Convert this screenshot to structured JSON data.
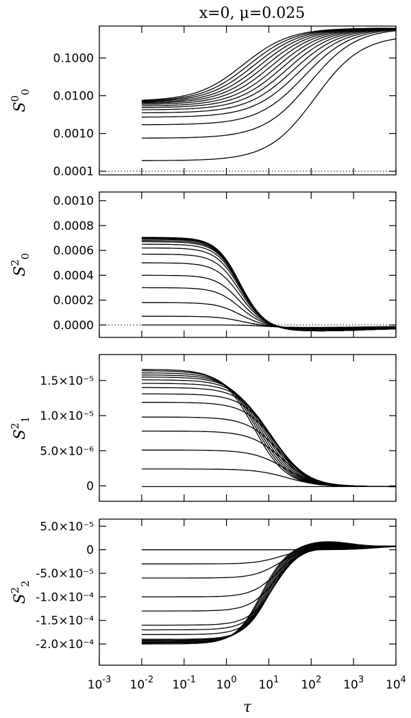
{
  "title": "x=0, μ=0.025",
  "chart_data": [
    {
      "type": "line",
      "name": "S0_0",
      "ylabel": {
        "base": "S",
        "sup": "0",
        "sub": "0"
      },
      "yscale": "log",
      "ylim": [
        8e-05,
        0.7
      ],
      "xlim": [
        0.001,
        10000
      ],
      "xscale": "log",
      "reference_line": 0.0001,
      "y_ticks": [
        {
          "v": 0.0001,
          "label": "0.0001"
        },
        {
          "v": 0.001,
          "label": "0.0010"
        },
        {
          "v": 0.01,
          "label": "0.0100"
        },
        {
          "v": 0.1,
          "label": "0.1000"
        }
      ],
      "curve_family": {
        "x_start": 0.01,
        "x_end": 10000,
        "count": 14,
        "start_values": [
          0.00019,
          0.00075,
          0.0017,
          0.0027,
          0.0035,
          0.0042,
          0.0048,
          0.0053,
          0.0058,
          0.0062,
          0.0065,
          0.0068,
          0.007,
          0.0072
        ],
        "end_value": 0.62
      }
    },
    {
      "type": "line",
      "name": "S2_0",
      "ylabel": {
        "base": "S",
        "sup": "2",
        "sub": "0"
      },
      "yscale": "linear",
      "ylim": [
        -0.0001,
        0.00107
      ],
      "xlim": [
        0.001,
        10000
      ],
      "xscale": "log",
      "reference_line": 0,
      "y_ticks": [
        {
          "v": 0,
          "label": "0.0000"
        },
        {
          "v": 0.0002,
          "label": "0.0002"
        },
        {
          "v": 0.0004,
          "label": "0.0004"
        },
        {
          "v": 0.0006,
          "label": "0.0006"
        },
        {
          "v": 0.0008,
          "label": "0.0008"
        },
        {
          "v": 0.001,
          "label": "0.0010"
        }
      ],
      "curve_family": {
        "x_start": 0.01,
        "x_end": 10000,
        "count": 15,
        "start_values": [
          0,
          7e-05,
          0.00018,
          0.0003,
          0.0004,
          0.0005,
          0.00057,
          0.00062,
          0.00065,
          0.00067,
          0.00068,
          0.00069,
          0.000695,
          0.0007,
          0.000705
        ],
        "min_value": -5e-05,
        "end_value": -3e-05
      }
    },
    {
      "type": "line",
      "name": "S2_1",
      "ylabel": {
        "base": "S",
        "sup": "2",
        "sub": "1"
      },
      "yscale": "linear",
      "ylim": [
        -2.2e-06,
        1.87e-05
      ],
      "xlim": [
        0.001,
        10000
      ],
      "xscale": "log",
      "reference_line": null,
      "y_ticks": [
        {
          "v": 0,
          "label": "0"
        },
        {
          "v": 5e-06,
          "label": "5.0×10⁻⁶"
        },
        {
          "v": 1e-05,
          "label": "1.0×10⁻⁵"
        },
        {
          "v": 1.5e-05,
          "label": "1.5×10⁻⁵"
        }
      ],
      "curve_family": {
        "x_start": 0.01,
        "x_end": 10000,
        "count": 15,
        "start_values": [
          0,
          2.5e-06,
          5.2e-06,
          7.9e-06,
          9.9e-06,
          1.2e-05,
          1.32e-05,
          1.41e-05,
          1.47e-05,
          1.52e-05,
          1.56e-05,
          1.59e-05,
          1.62e-05,
          1.65e-05,
          1.67e-05
        ],
        "end_value": -1e-07
      }
    },
    {
      "type": "line",
      "name": "S2_2",
      "ylabel": {
        "base": "S",
        "sup": "2",
        "sub": "2"
      },
      "yscale": "linear",
      "ylim": [
        -0.000245,
        6.5e-05
      ],
      "xlim": [
        0.001,
        10000
      ],
      "xscale": "log",
      "reference_line": null,
      "y_ticks": [
        {
          "v": 5e-05,
          "label": "5.0×10⁻⁵"
        },
        {
          "v": 0,
          "label": "0"
        },
        {
          "v": -5e-05,
          "label": "-5.0×10⁻⁵"
        },
        {
          "v": -0.0001,
          "label": "-1.0×10⁻⁴"
        },
        {
          "v": -0.00015,
          "label": "-1.5×10⁻⁴"
        },
        {
          "v": -0.0002,
          "label": "-2.0×10⁻⁴"
        }
      ],
      "curve_family": {
        "x_start": 0.01,
        "x_end": 10000,
        "count": 15,
        "start_values": [
          0,
          -3e-05,
          -6e-05,
          -0.0001,
          -0.00013,
          -0.00016,
          -0.00017,
          -0.00018,
          -0.00019,
          -0.000192,
          -0.000194,
          -0.000196,
          -0.000197,
          -0.000198,
          -0.0002
        ],
        "max_value": 1.8e-05,
        "end_value": 8e-06
      }
    }
  ],
  "x_axis": {
    "label": "τ",
    "ticks": [
      {
        "v": 0.001,
        "base": "10",
        "exp": "-3"
      },
      {
        "v": 0.01,
        "base": "10",
        "exp": "-2"
      },
      {
        "v": 0.1,
        "base": "10",
        "exp": "-1"
      },
      {
        "v": 1,
        "base": "10",
        "exp": "0"
      },
      {
        "v": 10,
        "base": "10",
        "exp": "1"
      },
      {
        "v": 100,
        "base": "10",
        "exp": "2"
      },
      {
        "v": 1000,
        "base": "10",
        "exp": "3"
      },
      {
        "v": 10000,
        "base": "10",
        "exp": "4"
      }
    ]
  }
}
